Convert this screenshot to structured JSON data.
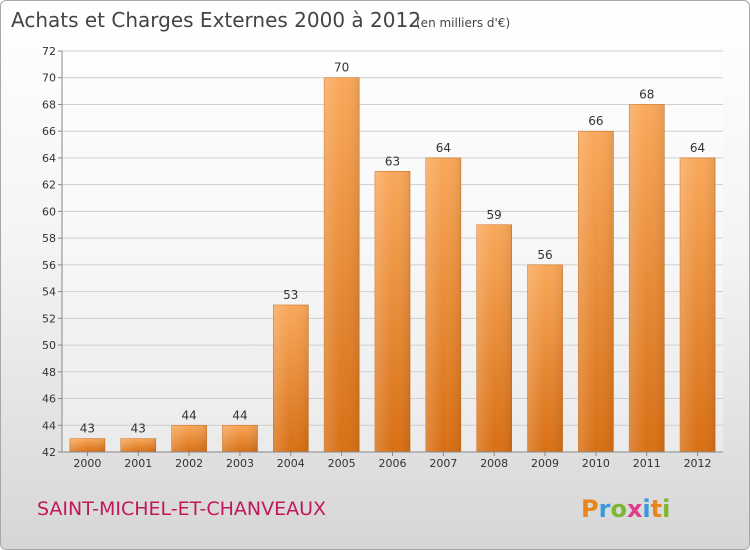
{
  "chart_data": {
    "type": "bar",
    "title": "Achats et Charges Externes 2000 à 2012",
    "subtitle": "(en milliers d'€)",
    "categories": [
      "2000",
      "2001",
      "2002",
      "2003",
      "2004",
      "2005",
      "2006",
      "2007",
      "2008",
      "2009",
      "2010",
      "2011",
      "2012"
    ],
    "values": [
      43,
      43,
      44,
      44,
      53,
      70,
      63,
      64,
      59,
      56,
      66,
      68,
      64
    ],
    "ylim": [
      42,
      72
    ],
    "yticks": [
      42,
      44,
      46,
      48,
      50,
      52,
      54,
      56,
      58,
      60,
      62,
      64,
      66,
      68,
      70,
      72
    ],
    "grid": true,
    "bar_color": "#f08a2c"
  },
  "footer": {
    "place": "SAINT-MICHEL-ET-CHANVEAUX",
    "logo": "Proxiti",
    "logo_letters": [
      "P",
      "r",
      "o",
      "x",
      "i",
      "t",
      "i"
    ],
    "logo_colors": [
      "#e8861a",
      "#3a9ad9",
      "#7cb82f",
      "#e03c8a",
      "#3a9ad9",
      "#e8861a",
      "#7cb82f"
    ]
  }
}
